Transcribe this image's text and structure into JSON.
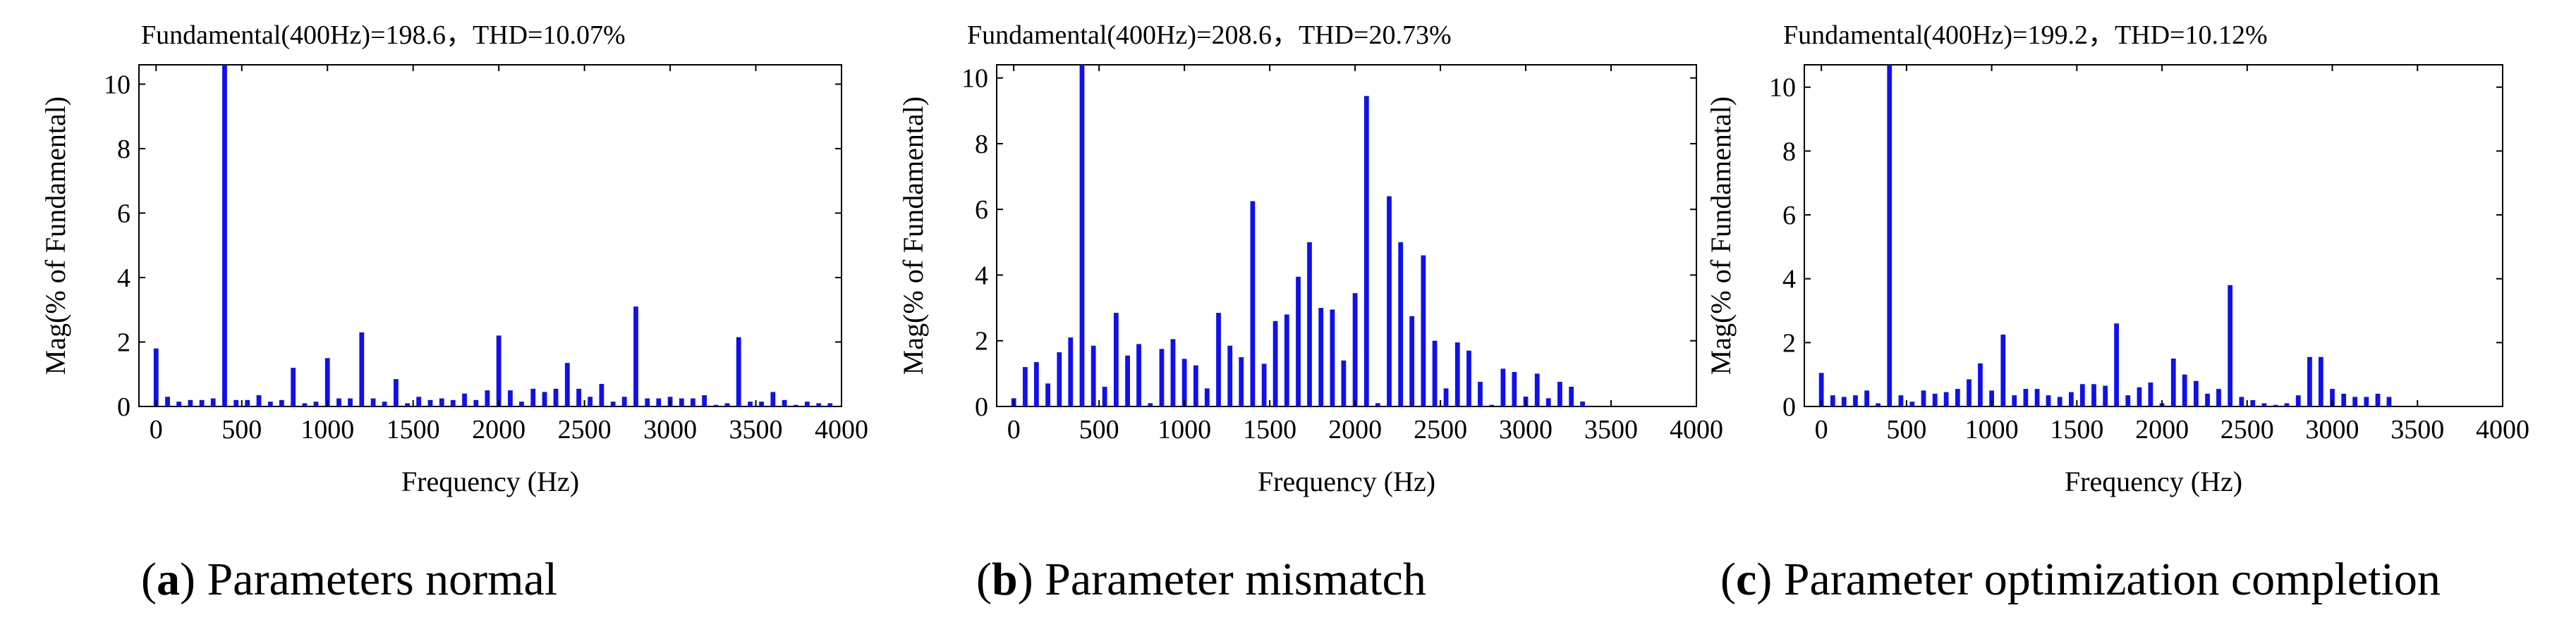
{
  "colors": {
    "bar": "#1010ee",
    "axis": "#000000"
  },
  "panels": [
    {
      "caption": {
        "open": "(",
        "letter": "a",
        "rest": ") Parameters normal"
      },
      "chart_data": {
        "type": "bar",
        "title": "Fundamental(400Hz)=198.6，THD=10.07%",
        "xlabel": "Frequency (Hz)",
        "ylabel": "Mag(% of Fundamental)",
        "xlim": [
          -100,
          4000
        ],
        "ylim": [
          0,
          10.6
        ],
        "xticks": [
          0,
          500,
          1000,
          1500,
          2000,
          2500,
          3000,
          3500,
          4000
        ],
        "yticks": [
          0,
          2,
          4,
          6,
          8,
          10
        ],
        "grid": false,
        "series": [
          {
            "x": [
              0,
              67,
              133,
              200,
              267,
              333,
              400,
              467,
              533,
              600,
              667,
              733,
              800,
              867,
              933,
              1000,
              1067,
              1133,
              1200,
              1267,
              1333,
              1400,
              1467,
              1533,
              1600,
              1667,
              1733,
              1800,
              1867,
              1933,
              2000,
              2067,
              2133,
              2200,
              2267,
              2333,
              2400,
              2467,
              2533,
              2600,
              2667,
              2733,
              2800,
              2867,
              2933,
              3000,
              3067,
              3133,
              3200,
              3267,
              3333,
              3400,
              3467,
              3533,
              3600,
              3667,
              3733,
              3800,
              3867,
              3933
            ],
            "values": [
              1.8,
              0.3,
              0.15,
              0.2,
              0.2,
              0.25,
              10.6,
              0.2,
              0.2,
              0.35,
              0.15,
              0.2,
              1.2,
              0.1,
              0.15,
              1.5,
              0.25,
              0.25,
              2.3,
              0.25,
              0.15,
              0.85,
              0.1,
              0.3,
              0.2,
              0.25,
              0.2,
              0.4,
              0.2,
              0.5,
              2.2,
              0.5,
              0.15,
              0.55,
              0.45,
              0.55,
              1.35,
              0.55,
              0.3,
              0.7,
              0.15,
              0.3,
              3.1,
              0.25,
              0.25,
              0.3,
              0.25,
              0.25,
              0.35,
              0.05,
              0.1,
              2.15,
              0.15,
              0.15,
              0.45,
              0.2,
              0.05,
              0.15,
              0.1,
              0.1
            ]
          }
        ]
      }
    },
    {
      "caption": {
        "open": "(",
        "letter": "b",
        "rest": ") Parameter mismatch"
      },
      "chart_data": {
        "type": "bar",
        "title": "Fundamental(400Hz)=208.6，THD=20.73%",
        "xlabel": "Frequency (Hz)",
        "ylabel": "Mag(% of Fundamental)",
        "xlim": [
          -100,
          4000
        ],
        "ylim": [
          0,
          10.4
        ],
        "xticks": [
          0,
          500,
          1000,
          1500,
          2000,
          2500,
          3000,
          3500,
          4000
        ],
        "yticks": [
          0,
          2,
          4,
          6,
          8,
          10
        ],
        "grid": false,
        "series": [
          {
            "x": [
              0,
              67,
              133,
              200,
              267,
              333,
              400,
              467,
              533,
              600,
              667,
              733,
              800,
              867,
              933,
              1000,
              1067,
              1133,
              1200,
              1267,
              1333,
              1400,
              1467,
              1533,
              1600,
              1667,
              1733,
              1800,
              1867,
              1933,
              2000,
              2067,
              2133,
              2200,
              2267,
              2333,
              2400,
              2467,
              2533,
              2600,
              2667,
              2733,
              2800,
              2867,
              2933,
              3000,
              3067,
              3133,
              3200,
              3267,
              3333,
              3400,
              3467,
              3533,
              3600,
              3667,
              3733,
              3800,
              3867,
              3933
            ],
            "values": [
              0.25,
              1.2,
              1.35,
              0.7,
              1.65,
              2.1,
              10.4,
              1.85,
              0.6,
              2.85,
              1.55,
              1.9,
              0.1,
              1.75,
              2.05,
              1.45,
              1.25,
              0.55,
              2.85,
              1.85,
              1.5,
              6.25,
              1.3,
              2.6,
              2.8,
              3.95,
              5.0,
              3.0,
              2.95,
              1.4,
              3.45,
              9.45,
              0.1,
              6.4,
              5.0,
              2.75,
              4.6,
              2.0,
              0.55,
              1.95,
              1.7,
              0.75,
              0.05,
              1.15,
              1.05,
              0.3,
              1.0,
              0.25,
              0.75,
              0.6,
              0.15,
              0.0,
              0.0,
              0.0,
              0.0,
              0.0,
              0.0,
              0.0,
              0.0,
              0.0
            ]
          }
        ]
      }
    },
    {
      "caption": {
        "open": "(",
        "letter": "c",
        "rest": ") Parameter optimization completion"
      },
      "chart_data": {
        "type": "bar",
        "title": "Fundamental(400Hz)=199.2，THD=10.12%",
        "xlabel": "Frequency (Hz)",
        "ylabel": "Mag(% of Fundamental)",
        "xlim": [
          -100,
          4000
        ],
        "ylim": [
          0,
          10.7
        ],
        "xticks": [
          0,
          500,
          1000,
          1500,
          2000,
          2500,
          3000,
          3500,
          4000
        ],
        "yticks": [
          0,
          2,
          4,
          6,
          8,
          10
        ],
        "grid": false,
        "series": [
          {
            "x": [
              0,
              67,
              133,
              200,
              267,
              333,
              400,
              467,
              533,
              600,
              667,
              733,
              800,
              867,
              933,
              1000,
              1067,
              1133,
              1200,
              1267,
              1333,
              1400,
              1467,
              1533,
              1600,
              1667,
              1733,
              1800,
              1867,
              1933,
              2000,
              2067,
              2133,
              2200,
              2267,
              2333,
              2400,
              2467,
              2533,
              2600,
              2667,
              2733,
              2800,
              2867,
              2933,
              3000,
              3067,
              3133,
              3200,
              3267,
              3333,
              3400,
              3467,
              3533,
              3600,
              3667,
              3733,
              3800,
              3867,
              3933
            ],
            "values": [
              1.05,
              0.35,
              0.3,
              0.35,
              0.5,
              0.1,
              10.7,
              0.35,
              0.15,
              0.5,
              0.4,
              0.45,
              0.55,
              0.85,
              1.35,
              0.5,
              2.25,
              0.35,
              0.55,
              0.55,
              0.35,
              0.3,
              0.45,
              0.7,
              0.7,
              0.65,
              2.6,
              0.35,
              0.6,
              0.75,
              0.1,
              1.5,
              1.0,
              0.8,
              0.4,
              0.55,
              3.8,
              0.3,
              0.2,
              0.1,
              0.05,
              0.1,
              0.35,
              1.55,
              1.55,
              0.55,
              0.4,
              0.3,
              0.3,
              0.4,
              0.3,
              0.0,
              0.0,
              0.0,
              0.0,
              0.0,
              0.0,
              0.0,
              0.0,
              0.0
            ]
          }
        ]
      }
    }
  ]
}
